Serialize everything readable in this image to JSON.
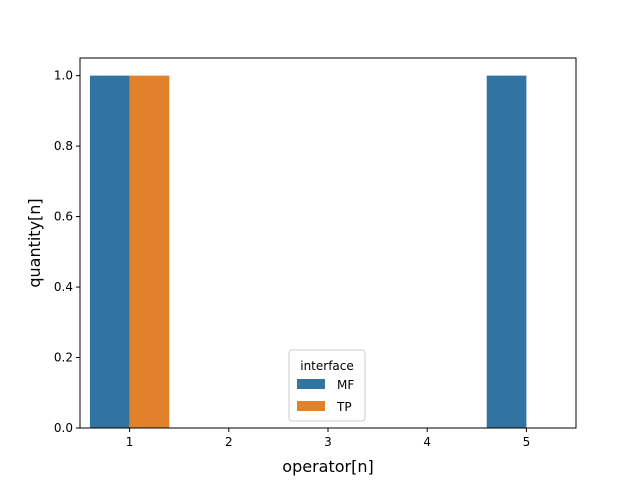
{
  "chart_data": {
    "type": "bar",
    "title": "",
    "xlabel": "operator[n]",
    "ylabel": "quantity[n]",
    "categories": [
      "1",
      "2",
      "3",
      "4",
      "5"
    ],
    "series": [
      {
        "name": "MF",
        "values": [
          1.0,
          0.0,
          0.0,
          0.0,
          1.0
        ],
        "color": "#3274a1"
      },
      {
        "name": "TP",
        "values": [
          1.0,
          0.0,
          0.0,
          0.0,
          0.0
        ],
        "color": "#e1812c"
      }
    ],
    "ylim": [
      0.0,
      1.05
    ],
    "yticks": [
      "0.0",
      "0.2",
      "0.4",
      "0.6",
      "0.8",
      "1.0"
    ],
    "grid": false,
    "legend": {
      "title": "interface",
      "placement": "lower-center"
    }
  }
}
